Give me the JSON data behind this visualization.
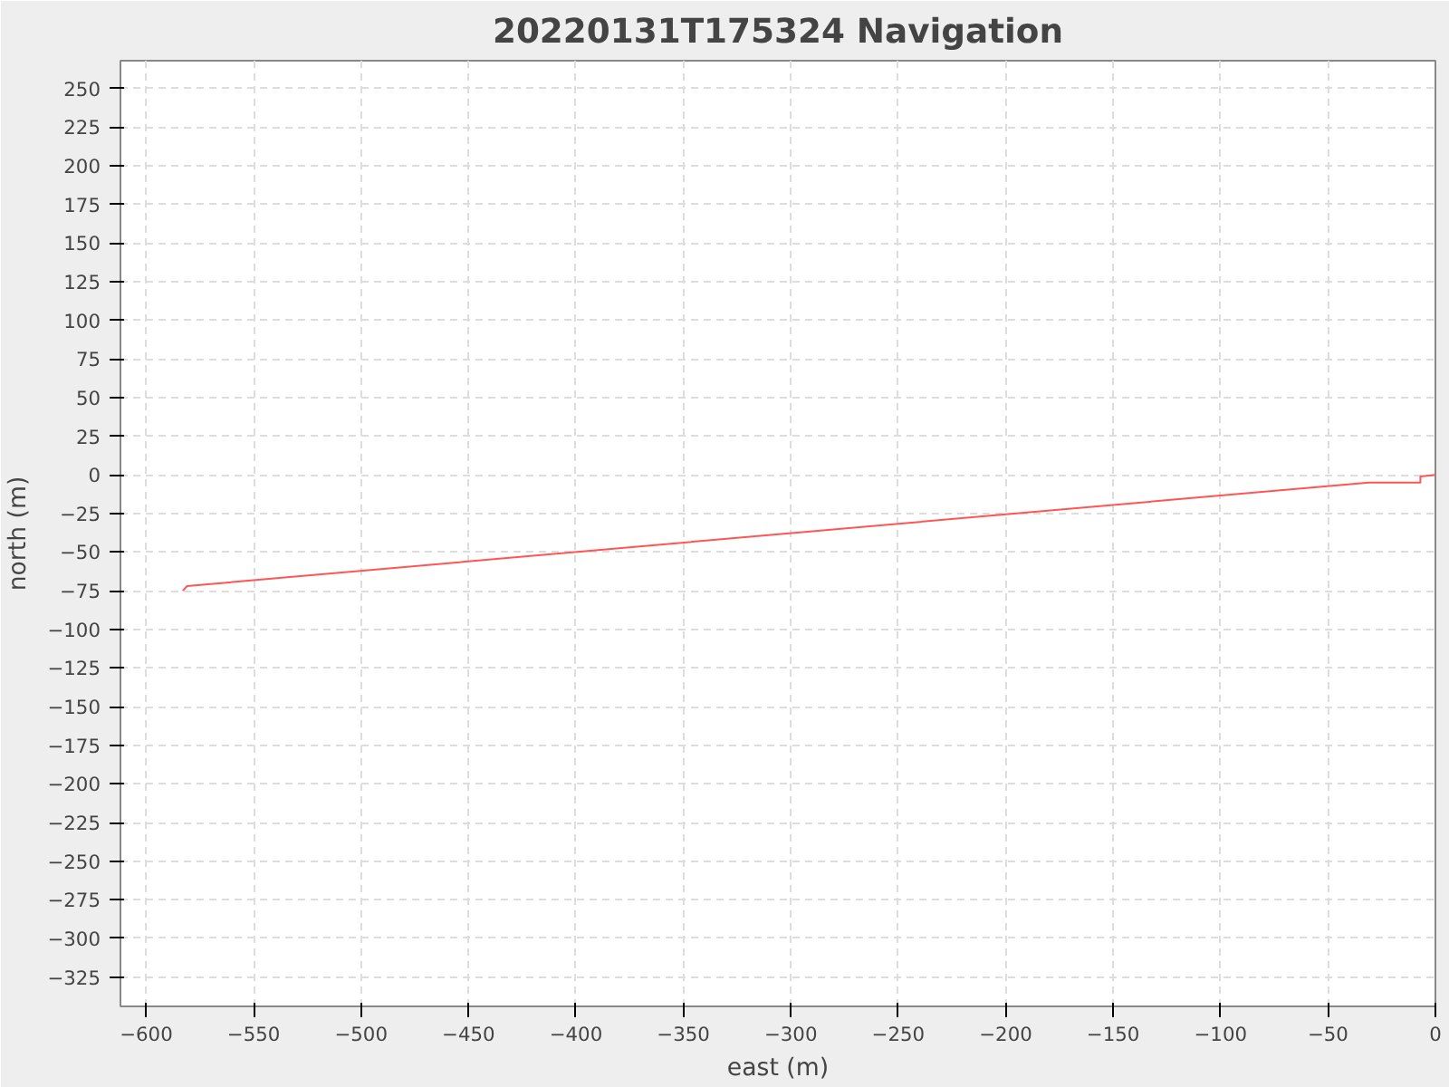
{
  "chart_data": {
    "type": "line",
    "title": "20220131T175324 Navigation",
    "xlabel": "east (m)",
    "ylabel": "north (m)",
    "series": [
      {
        "color": "#ff5555",
        "x": [
          -583,
          -581,
          -31,
          -7,
          -7,
          0
        ],
        "values": [
          -75,
          -72,
          -5,
          -5,
          -1,
          0
        ]
      }
    ],
    "xlim": [
      -612,
      0
    ],
    "ylim": [
      -344,
      268
    ],
    "xticks": [
      -600,
      -550,
      -500,
      -450,
      -400,
      -350,
      -300,
      -250,
      -200,
      -150,
      -100,
      -50,
      0
    ],
    "yticks": [
      -325,
      -300,
      -275,
      -250,
      -225,
      -200,
      -175,
      -150,
      -125,
      -100,
      -75,
      -50,
      -25,
      0,
      25,
      50,
      75,
      100,
      125,
      150,
      175,
      200,
      225,
      250
    ],
    "grid": true,
    "marker": "none",
    "line_style": "solid"
  }
}
